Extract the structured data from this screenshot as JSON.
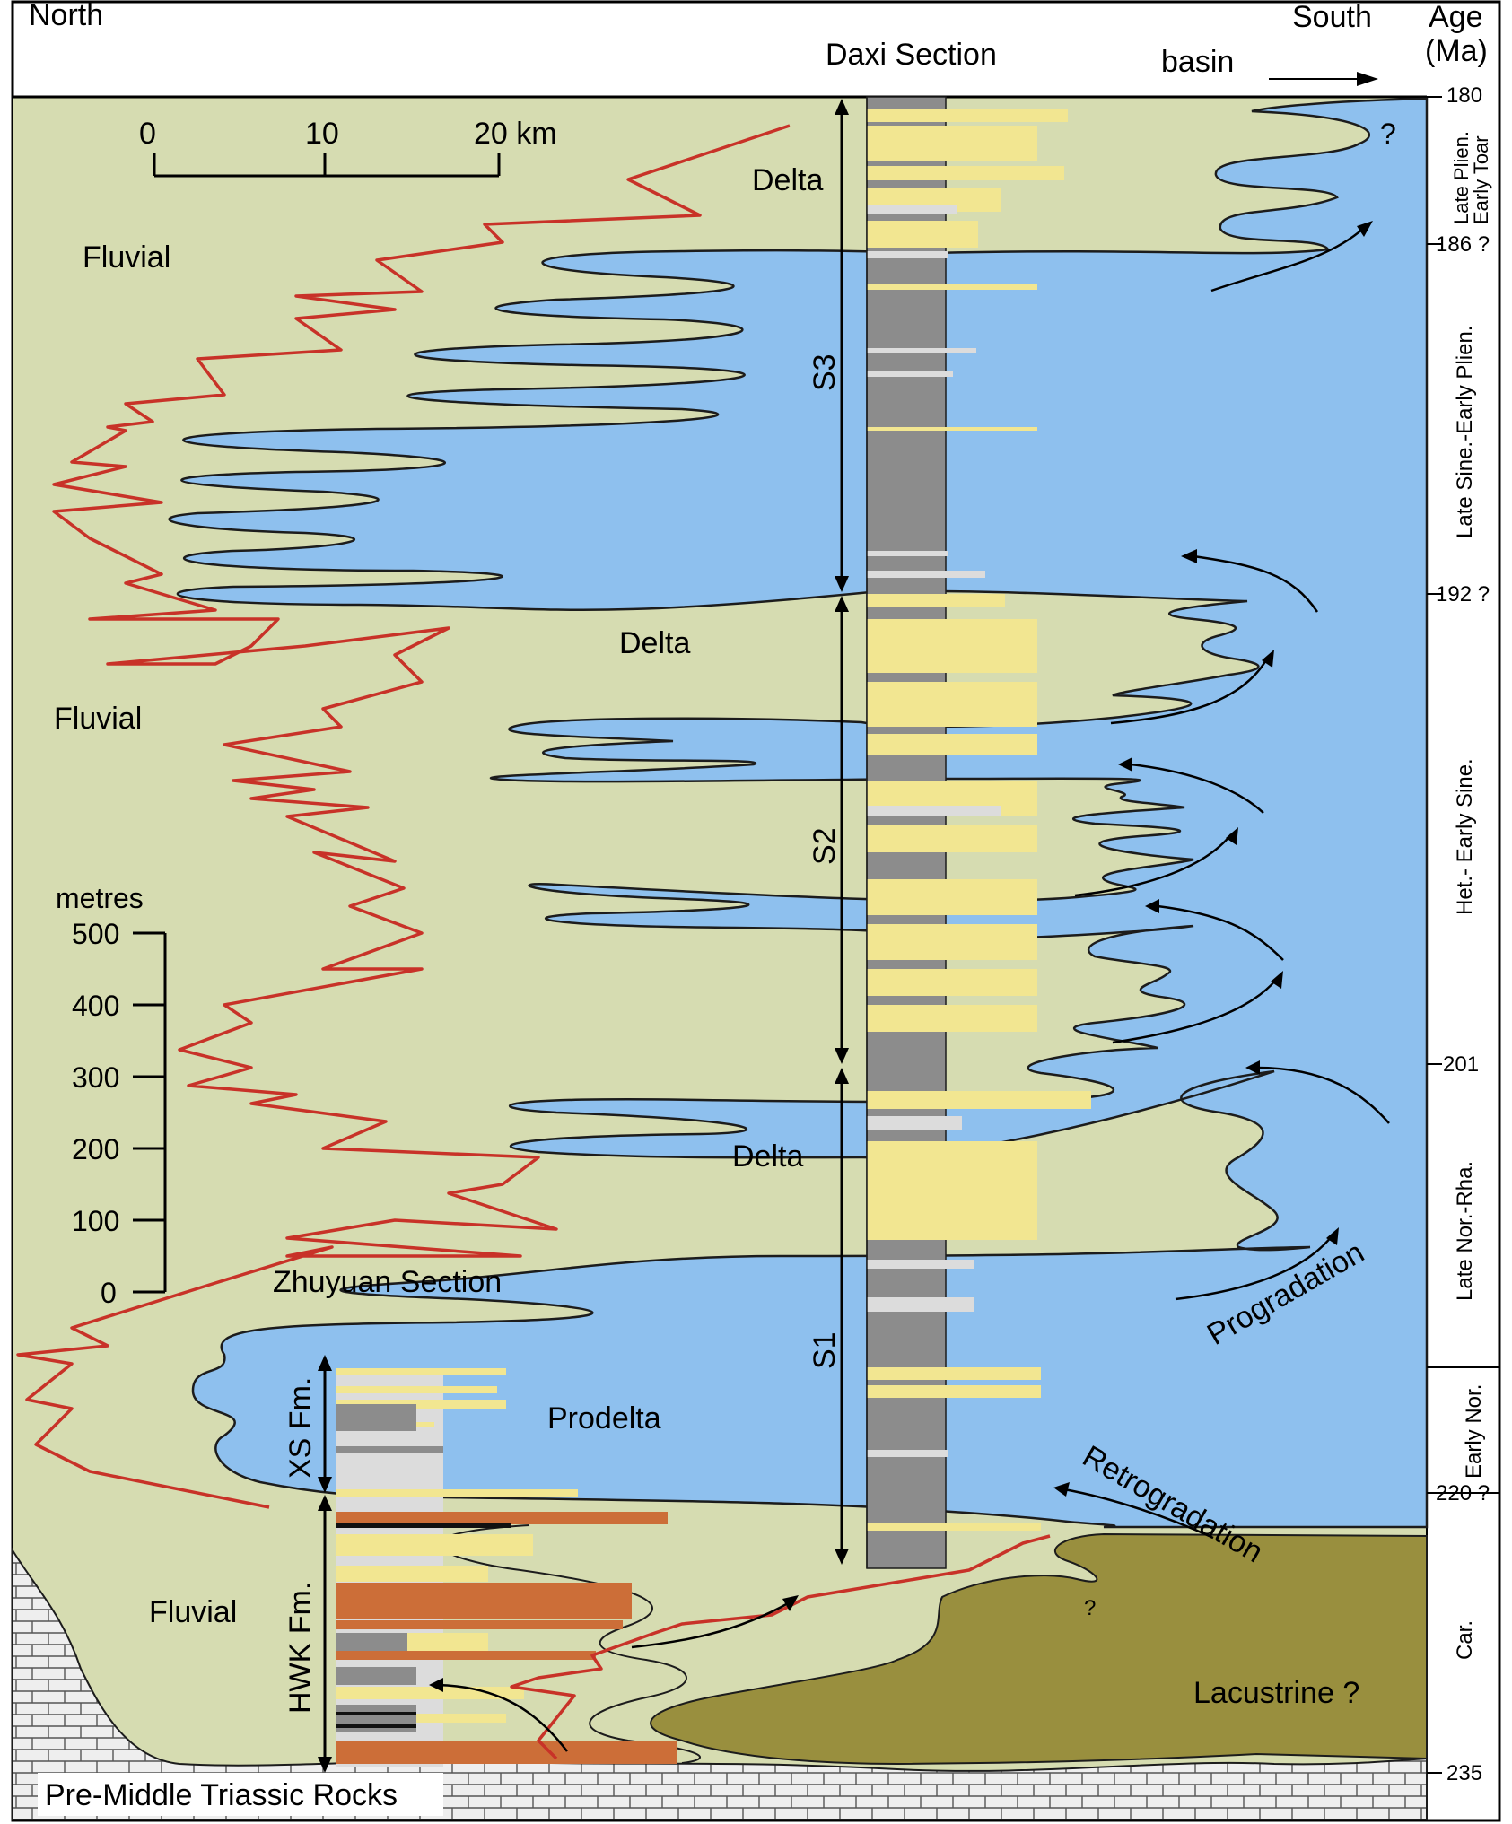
{
  "header": {
    "north": "North",
    "south": "South",
    "section": "Daxi Section",
    "basin": "basin",
    "age_title_1": "Age",
    "age_title_2": "(Ma)"
  },
  "scale_bar": {
    "zero": "0",
    "ten": "10",
    "twenty": "20 km"
  },
  "thickness_scale": {
    "unit": "metres",
    "ticks": [
      "500",
      "400",
      "300",
      "200",
      "100",
      "0"
    ]
  },
  "environments": {
    "fluvial_top": "Fluvial",
    "fluvial_mid": "Fluvial",
    "fluvial_bottom": "Fluvial",
    "delta_s3": "Delta",
    "delta_s2": "Delta",
    "delta_s1": "Delta",
    "prodelta": "Prodelta",
    "lacustrine": "Lacustrine ?",
    "basement": "Pre-Middle Triassic Rocks",
    "zhuyuan": "Zhuyuan Section",
    "question": "?",
    "question_small": "?"
  },
  "sequences": {
    "s3": "S3",
    "s2": "S2",
    "s1": "S1"
  },
  "formations": {
    "xs": "XS Fm.",
    "hwk": "HWK Fm."
  },
  "annotations": {
    "progradation": "Progradation",
    "retrogradation": "Retrogradation"
  },
  "ages": {
    "a180": "180",
    "a186": "186 ?",
    "a192": "192 ?",
    "a201": "201",
    "a220": "220 ?",
    "a235": "235"
  },
  "stages": {
    "toar_1": "Late Plien.",
    "toar_2": "Early Toar",
    "sine": "Late Sine.-Early Plien.",
    "het": "Het.- Early Sine.",
    "nor_rha": "Late Nor.-Rha.",
    "early_nor": "Early Nor.",
    "car": "Car."
  },
  "colors": {
    "fluvial": "#d6dcb1",
    "lake": "#8ec0ee",
    "lacustrine": "#998f3e",
    "sand": "#f2e691",
    "mud": "#8c8c8c",
    "siltstone": "#dcdcdc",
    "red_bed": "#cc6e38",
    "red_curve": "#c83228"
  }
}
